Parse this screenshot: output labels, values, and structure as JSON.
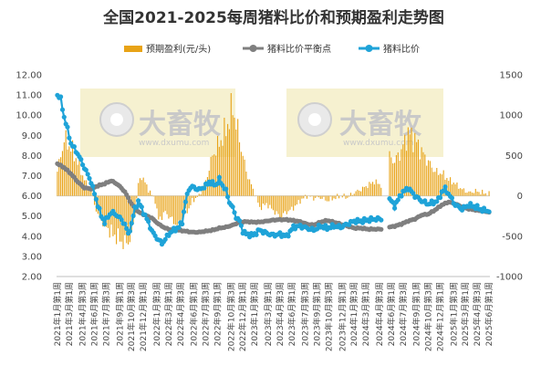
{
  "chart_data": {
    "type": "bar+line",
    "title": "全国2021-2025每周猪料比价和预期盈利走势图",
    "legend": [
      "预期盈利(元/头)",
      "猪料比价平衡点",
      "猪料比价"
    ],
    "legend_position": "top",
    "y_left_ticks": [
      "12.00",
      "11.00",
      "10.00",
      "9.00",
      "8.00",
      "7.00",
      "6.00",
      "5.00",
      "4.00",
      "3.00",
      "2.00"
    ],
    "y_left_range": [
      2,
      12
    ],
    "y_right_ticks": [
      "1500",
      "1000",
      "500",
      "0",
      "-500",
      "-1000"
    ],
    "y_right_range": [
      -1000,
      1500
    ],
    "x_ticks": [
      "2021年1月第1周",
      "2021年3月第1周",
      "2021年4月第3周",
      "2021年6月第1周",
      "2021年7月第3周",
      "2021年9月第1周",
      "2021年10月第3周",
      "2021年12月第1周",
      "2022年1月第3周",
      "2022年3月第1周",
      "2022年4月第3周",
      "2022年6月第1周",
      "2022年7月第3周",
      "2022年9月第1周",
      "2022年10月第3周",
      "2022年12月第1周",
      "2023年1月第3周",
      "2023年3月第1周",
      "2023年4月第3周",
      "2023年6月第1周",
      "2023年7月第3周",
      "2023年9月第1周",
      "2023年10月第3周",
      "2023年12月第1周",
      "2024年1月第3周",
      "2024年3月第1周",
      "2024年4月第3周",
      "2024年6月第1周",
      "2024年7月第3周",
      "2024年9月第1周",
      "2024年10月第3周",
      "2024年12月第1周",
      "2025年1月第3周",
      "2025年3月第1周",
      "2025年4月第3周",
      "2025年6月第1周"
    ],
    "watermark": {
      "brand": "大畜牧",
      "url": "www.dxumu.com"
    },
    "colors": {
      "profit": "#e8a317",
      "breakeven": "#7f7f7f",
      "ratio": "#1fa3d8",
      "watermark_bg": "#f5efc8"
    },
    "series": [
      {
        "name": "预期盈利(元/头)",
        "axis": "right",
        "kind": "bar",
        "knots": [
          [
            0,
            300
          ],
          [
            4,
            700
          ],
          [
            8,
            600
          ],
          [
            12,
            420
          ],
          [
            16,
            200
          ],
          [
            20,
            50
          ],
          [
            24,
            -250
          ],
          [
            28,
            -350
          ],
          [
            32,
            -460
          ],
          [
            36,
            -520
          ],
          [
            40,
            -600
          ],
          [
            44,
            -520
          ],
          [
            46,
            -220
          ],
          [
            48,
            150
          ],
          [
            50,
            250
          ],
          [
            54,
            80
          ],
          [
            58,
            -60
          ],
          [
            60,
            -300
          ],
          [
            64,
            -200
          ],
          [
            68,
            -300
          ],
          [
            72,
            -380
          ],
          [
            76,
            -200
          ],
          [
            78,
            -160
          ],
          [
            80,
            -60
          ],
          [
            84,
            0
          ],
          [
            88,
            180
          ],
          [
            92,
            500
          ],
          [
            96,
            650
          ],
          [
            100,
            820
          ],
          [
            104,
            1100
          ],
          [
            108,
            700
          ],
          [
            112,
            300
          ],
          [
            116,
            80
          ],
          [
            118,
            -20
          ],
          [
            120,
            -150
          ],
          [
            124,
            -100
          ],
          [
            128,
            -180
          ],
          [
            132,
            -260
          ],
          [
            136,
            -200
          ],
          [
            140,
            -150
          ],
          [
            144,
            -60
          ],
          [
            148,
            0
          ],
          [
            152,
            -30
          ],
          [
            156,
            -20
          ],
          [
            160,
            -60
          ],
          [
            164,
            -30
          ],
          [
            168,
            0
          ],
          [
            172,
            -20
          ],
          [
            176,
            40
          ],
          [
            180,
            80
          ],
          [
            184,
            130
          ],
          [
            188,
            180
          ],
          [
            192,
            130
          ],
          [
            195,
            null
          ],
          [
            196,
            null
          ],
          [
            197,
            480
          ],
          [
            200,
            430
          ],
          [
            204,
            560
          ],
          [
            208,
            780
          ],
          [
            212,
            700
          ],
          [
            216,
            550
          ],
          [
            220,
            420
          ],
          [
            224,
            300
          ],
          [
            228,
            280
          ],
          [
            232,
            200
          ],
          [
            236,
            150
          ],
          [
            240,
            80
          ],
          [
            244,
            40
          ],
          [
            248,
            60
          ],
          [
            252,
            40
          ],
          [
            256,
            20
          ]
        ]
      },
      {
        "name": "猪料比价平衡点",
        "axis": "left",
        "kind": "line",
        "knots": [
          [
            0,
            7.6
          ],
          [
            4,
            7.4
          ],
          [
            8,
            7.1
          ],
          [
            12,
            6.7
          ],
          [
            16,
            6.4
          ],
          [
            20,
            6.35
          ],
          [
            24,
            6.5
          ],
          [
            28,
            6.6
          ],
          [
            32,
            6.75
          ],
          [
            36,
            6.55
          ],
          [
            40,
            6.2
          ],
          [
            44,
            5.6
          ],
          [
            48,
            5.2
          ],
          [
            52,
            5.05
          ],
          [
            56,
            4.9
          ],
          [
            60,
            4.6
          ],
          [
            64,
            4.4
          ],
          [
            68,
            4.3
          ],
          [
            72,
            4.3
          ],
          [
            76,
            4.25
          ],
          [
            80,
            4.2
          ],
          [
            84,
            4.2
          ],
          [
            88,
            4.25
          ],
          [
            92,
            4.3
          ],
          [
            96,
            4.4
          ],
          [
            100,
            4.45
          ],
          [
            104,
            4.55
          ],
          [
            108,
            4.7
          ],
          [
            112,
            4.72
          ],
          [
            116,
            4.7
          ],
          [
            120,
            4.7
          ],
          [
            124,
            4.75
          ],
          [
            128,
            4.8
          ],
          [
            132,
            4.82
          ],
          [
            136,
            4.82
          ],
          [
            140,
            4.78
          ],
          [
            144,
            4.72
          ],
          [
            148,
            4.6
          ],
          [
            152,
            4.55
          ],
          [
            156,
            4.7
          ],
          [
            160,
            4.78
          ],
          [
            164,
            4.7
          ],
          [
            168,
            4.6
          ],
          [
            172,
            4.5
          ],
          [
            176,
            4.4
          ],
          [
            180,
            4.4
          ],
          [
            184,
            4.35
          ],
          [
            188,
            4.35
          ],
          [
            192,
            4.35
          ],
          [
            195,
            null
          ],
          [
            196,
            null
          ],
          [
            197,
            4.45
          ],
          [
            200,
            4.5
          ],
          [
            204,
            4.6
          ],
          [
            208,
            4.75
          ],
          [
            212,
            4.85
          ],
          [
            216,
            5.05
          ],
          [
            220,
            5.1
          ],
          [
            224,
            5.3
          ],
          [
            228,
            5.55
          ],
          [
            232,
            5.7
          ],
          [
            236,
            5.6
          ],
          [
            240,
            5.45
          ],
          [
            244,
            5.35
          ],
          [
            248,
            5.3
          ],
          [
            252,
            5.25
          ],
          [
            256,
            5.2
          ]
        ]
      },
      {
        "name": "猪料比价",
        "axis": "left",
        "kind": "line",
        "knots": [
          [
            0,
            11.0
          ],
          [
            2,
            10.8
          ],
          [
            4,
            9.9
          ],
          [
            6,
            9.3
          ],
          [
            8,
            8.6
          ],
          [
            12,
            8.1
          ],
          [
            16,
            7.4
          ],
          [
            20,
            6.7
          ],
          [
            22,
            6.1
          ],
          [
            26,
            5.0
          ],
          [
            28,
            4.7
          ],
          [
            32,
            5.2
          ],
          [
            36,
            5.0
          ],
          [
            40,
            4.6
          ],
          [
            42,
            4.1
          ],
          [
            44,
            4.6
          ],
          [
            46,
            5.4
          ],
          [
            48,
            5.7
          ],
          [
            50,
            5.4
          ],
          [
            52,
            5.0
          ],
          [
            54,
            4.7
          ],
          [
            56,
            4.25
          ],
          [
            60,
            3.8
          ],
          [
            62,
            3.65
          ],
          [
            64,
            3.85
          ],
          [
            66,
            4.1
          ],
          [
            68,
            4.25
          ],
          [
            72,
            4.45
          ],
          [
            74,
            4.7
          ],
          [
            76,
            5.7
          ],
          [
            78,
            6.35
          ],
          [
            80,
            6.45
          ],
          [
            84,
            6.3
          ],
          [
            88,
            6.5
          ],
          [
            90,
            6.7
          ],
          [
            92,
            6.6
          ],
          [
            94,
            6.55
          ],
          [
            96,
            6.8
          ],
          [
            100,
            6.25
          ],
          [
            102,
            5.7
          ],
          [
            104,
            5.4
          ],
          [
            106,
            4.95
          ],
          [
            108,
            4.75
          ],
          [
            110,
            4.25
          ],
          [
            112,
            4.1
          ],
          [
            116,
            4.05
          ],
          [
            120,
            4.3
          ],
          [
            124,
            4.15
          ],
          [
            128,
            4.05
          ],
          [
            132,
            4.1
          ],
          [
            136,
            4.0
          ],
          [
            140,
            4.45
          ],
          [
            144,
            4.5
          ],
          [
            148,
            4.4
          ],
          [
            152,
            4.3
          ],
          [
            156,
            4.5
          ],
          [
            160,
            4.4
          ],
          [
            164,
            4.5
          ],
          [
            168,
            4.45
          ],
          [
            172,
            4.6
          ],
          [
            176,
            4.75
          ],
          [
            180,
            4.75
          ],
          [
            184,
            4.8
          ],
          [
            188,
            4.85
          ],
          [
            192,
            4.85
          ],
          [
            195,
            null
          ],
          [
            196,
            null
          ],
          [
            197,
            5.85
          ],
          [
            200,
            5.5
          ],
          [
            204,
            6.1
          ],
          [
            208,
            6.4
          ],
          [
            212,
            6.0
          ],
          [
            216,
            5.75
          ],
          [
            220,
            5.6
          ],
          [
            224,
            5.7
          ],
          [
            226,
            5.8
          ],
          [
            228,
            6.2
          ],
          [
            230,
            6.35
          ],
          [
            232,
            6.1
          ],
          [
            236,
            5.55
          ],
          [
            240,
            5.35
          ],
          [
            244,
            5.55
          ],
          [
            248,
            5.45
          ],
          [
            252,
            5.3
          ],
          [
            256,
            5.25
          ]
        ]
      }
    ],
    "weeks": 257
  }
}
